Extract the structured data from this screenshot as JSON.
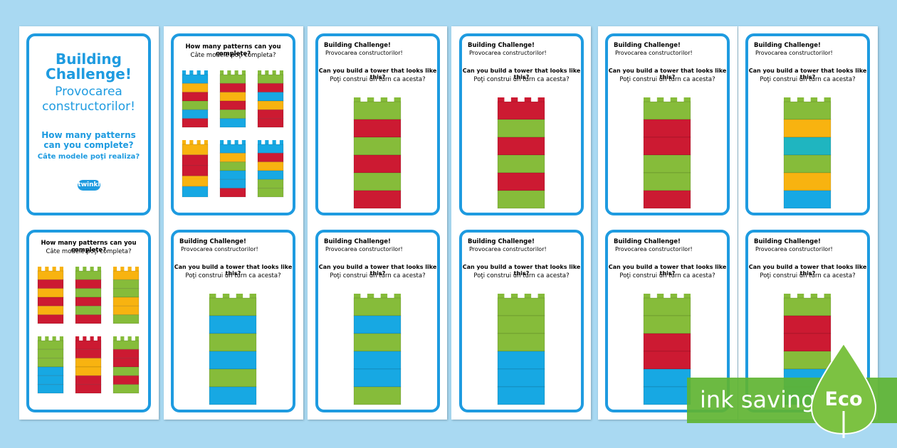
{
  "cover": {
    "title": "Building Challenge!",
    "subtitle": "Provocarea constructorilor!",
    "question": "How many patterns can you complete?",
    "question_ro": "Câte modele poţi realiza?",
    "logo": "twinkl"
  },
  "pattern_cards": [
    {
      "question": "How many patterns can you complete?",
      "question_ro": "Câte modele poţi completa?"
    },
    {
      "question": "How many patterns can you complete?",
      "question_ro": "Câte modele poţi completa?"
    }
  ],
  "tower_cards": [
    {
      "title": "Building Challenge!",
      "subtitle": "Provocarea constructorilor!",
      "question": "Can you build a tower that looks like this?",
      "question_ro": "Poţi construi un turn ca acesta?"
    },
    {
      "title": "Building Challenge!",
      "subtitle": "Provocarea constructorilor!",
      "question": "Can you build a tower that looks like this?",
      "question_ro": "Poţi construi un turn ca acesta?"
    },
    {
      "title": "Building Challenge!",
      "subtitle": "Provocarea constructorilor!",
      "question": "Can you build a tower that looks like this?",
      "question_ro": "Poţi construi un turn ca acesta?"
    },
    {
      "title": "Building Challenge!",
      "subtitle": "Provocarea constructorilor!",
      "question": "Can you build a tower that looks like this?",
      "question_ro": "Poţi construi un turn ca acesta?"
    },
    {
      "title": "Building Challenge!",
      "subtitle": "Provocarea constructorilor!",
      "question": "Can you build a tower that looks like this?",
      "question_ro": "Poţi construi un turn ca acesta?"
    },
    {
      "title": "Building Challenge!",
      "subtitle": "Provocarea constructorilor!",
      "question": "Can you build a tower that looks like this?",
      "question_ro": "Poţi construi un turn ca acesta?"
    },
    {
      "title": "Building Challenge!",
      "subtitle": "Provocarea constructorilor!",
      "question": "Can you build a tower that looks like this?",
      "question_ro": "Poţi construi un turn ca acesta?"
    },
    {
      "title": "Building Challenge!",
      "subtitle": "Provocarea constructorilor!",
      "question": "Can you build a tower that looks like this?",
      "question_ro": "Poţi construi un turn ca acesta?"
    },
    {
      "title": "Building Challenge!",
      "subtitle": "Provocarea constructorilor!",
      "question": "Can you build a tower that looks like this?",
      "question_ro": "Poţi construi un turn ca acesta?"
    }
  ],
  "badge": {
    "text": "ink saving",
    "eco": "Eco"
  }
}
